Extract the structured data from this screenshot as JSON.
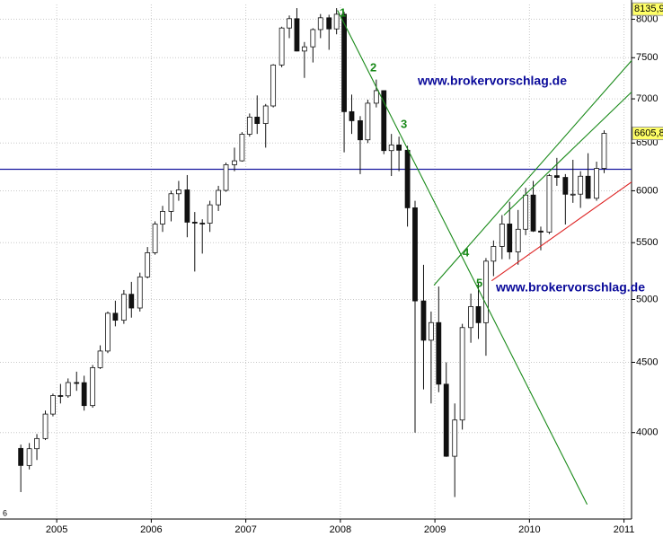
{
  "chart_data": {
    "type": "candlestick",
    "x": [
      2004.62,
      2004.71,
      2004.79,
      2004.88,
      2004.96,
      2005.04,
      2005.12,
      2005.21,
      2005.29,
      2005.38,
      2005.46,
      2005.54,
      2005.62,
      2005.71,
      2005.79,
      2005.88,
      2005.96,
      2006.04,
      2006.12,
      2006.21,
      2006.29,
      2006.38,
      2006.46,
      2006.54,
      2006.62,
      2006.71,
      2006.79,
      2006.88,
      2006.96,
      2007.04,
      2007.12,
      2007.21,
      2007.29,
      2007.38,
      2007.46,
      2007.54,
      2007.62,
      2007.71,
      2007.79,
      2007.88,
      2007.96,
      2008.04,
      2008.12,
      2008.21,
      2008.29,
      2008.38,
      2008.46,
      2008.54,
      2008.62,
      2008.71,
      2008.79,
      2008.88,
      2008.96,
      2009.04,
      2009.12,
      2009.21,
      2009.29,
      2009.38,
      2009.46,
      2009.54,
      2009.62,
      2009.71,
      2009.79,
      2009.88,
      2009.96,
      2010.04,
      2010.12,
      2010.21,
      2010.29,
      2010.38,
      2010.46,
      2010.54,
      2010.62,
      2010.71,
      2010.79
    ],
    "open": [
      3895,
      3785,
      3893,
      3960,
      4126,
      4256,
      4254,
      4350,
      4349,
      4185,
      4460,
      4586,
      4886,
      4829,
      5044,
      4929,
      5193,
      5408,
      5674,
      5796,
      5970,
      6009,
      5692,
      5683,
      5682,
      5860,
      6004,
      6268,
      6309,
      6597,
      6789,
      6716,
      6917,
      7409,
      7883,
      8007,
      7584,
      7638,
      7862,
      8019,
      7871,
      8067,
      6851,
      6748,
      6535,
      6949,
      7097,
      6418,
      6479,
      6422,
      5831,
      4988,
      4670,
      4810,
      4338,
      3844,
      4085,
      4770,
      4941,
      4809,
      5332,
      5465,
      5675,
      5415,
      5625,
      5957,
      5608,
      5598,
      6154,
      6136,
      5965,
      5966,
      6148,
      5925,
      6229
    ],
    "high": [
      3920,
      3930,
      3990,
      4150,
      4270,
      4340,
      4380,
      4430,
      4400,
      4480,
      4630,
      4900,
      4990,
      5080,
      5150,
      5230,
      5460,
      5700,
      5850,
      6000,
      6100,
      6160,
      5790,
      5720,
      5900,
      6050,
      6290,
      6450,
      6620,
      6830,
      7040,
      6940,
      7420,
      7900,
      8050,
      8150,
      7700,
      7880,
      8070,
      8060,
      8150,
      8100,
      7050,
      6800,
      6990,
      7230,
      7100,
      6600,
      6570,
      6470,
      5900,
      5300,
      4900,
      5110,
      4500,
      4200,
      4800,
      5050,
      5140,
      5360,
      5520,
      5760,
      5890,
      5810,
      6030,
      6100,
      5650,
      6170,
      6340,
      6170,
      6320,
      6200,
      6390,
      6300,
      6640
    ],
    "low": [
      3620,
      3760,
      3820,
      3950,
      4110,
      4200,
      4240,
      4290,
      4150,
      4170,
      4450,
      4570,
      4780,
      4800,
      4850,
      4900,
      5180,
      5390,
      5600,
      5700,
      5900,
      5550,
      5240,
      5400,
      5600,
      5800,
      5990,
      6200,
      6300,
      6570,
      6600,
      6450,
      6900,
      7380,
      7750,
      7580,
      7250,
      7440,
      7750,
      7600,
      7800,
      6400,
      6600,
      6170,
      6500,
      6900,
      6380,
      6150,
      6200,
      5650,
      4000,
      4300,
      4200,
      4280,
      3840,
      3590,
      4020,
      4650,
      4680,
      4550,
      5200,
      5350,
      5350,
      5300,
      5570,
      5600,
      5430,
      5580,
      6050,
      5670,
      5880,
      5830,
      5920,
      5900,
      6180
    ],
    "close": [
      3785,
      3893,
      3960,
      4126,
      4256,
      4254,
      4350,
      4349,
      4185,
      4460,
      4586,
      4886,
      4829,
      5044,
      4929,
      5193,
      5408,
      5674,
      5796,
      5970,
      6009,
      5692,
      5683,
      5682,
      5860,
      6004,
      6268,
      6309,
      6597,
      6789,
      6716,
      6917,
      7409,
      7883,
      8007,
      7584,
      7638,
      7862,
      8019,
      7871,
      8067,
      6851,
      6748,
      6535,
      6949,
      7097,
      6418,
      6479,
      6422,
      5831,
      4988,
      4670,
      4810,
      4338,
      3844,
      4085,
      4770,
      4941,
      4809,
      5332,
      5465,
      5675,
      5415,
      5625,
      5957,
      5608,
      5598,
      6154,
      6136,
      5965,
      5966,
      6148,
      5925,
      6229,
      6606
    ],
    "up_color": "#ffffff",
    "down_color": "#111111",
    "xlim": [
      2004.4,
      2011.08
    ],
    "xticks": [
      2005,
      2006,
      2007,
      2008,
      2009,
      2010,
      2011
    ],
    "ylim": [
      3460,
      8200
    ],
    "yticks": [
      4000,
      4500,
      5000,
      5500,
      6000,
      6500,
      7000,
      7500,
      8000
    ],
    "log_scale": true,
    "grid": true,
    "price_labels": [
      {
        "value": 8135.9,
        "label": "8135,9"
      },
      {
        "value": 6605.8,
        "label": "6605,8"
      }
    ],
    "price_label_color": "#ffff66",
    "horizontal_line": {
      "value": 6220,
      "color": "#1a1aa0"
    },
    "trend_lines": [
      {
        "color": "#1a8a1a",
        "x": [
          2007.97,
          2010.61
        ],
        "y": [
          8120,
          3546
        ]
      },
      {
        "color": "#1a8a1a",
        "x": [
          2008.99,
          2011.08
        ],
        "y": [
          5121,
          7464
        ]
      },
      {
        "color": "#1a8a1a",
        "x": [
          2009.73,
          2011.08
        ],
        "y": [
          5759,
          7080
        ]
      },
      {
        "color": "#dd2222",
        "x": [
          2009.6,
          2011.08
        ],
        "y": [
          5159,
          6089
        ]
      }
    ],
    "point_labels": [
      "1",
      "2",
      "3",
      "4",
      "5"
    ],
    "watermarks": [
      "www.brokervorschlag.de",
      "www.brokervorschlag.de"
    ],
    "corner_label": "6"
  }
}
